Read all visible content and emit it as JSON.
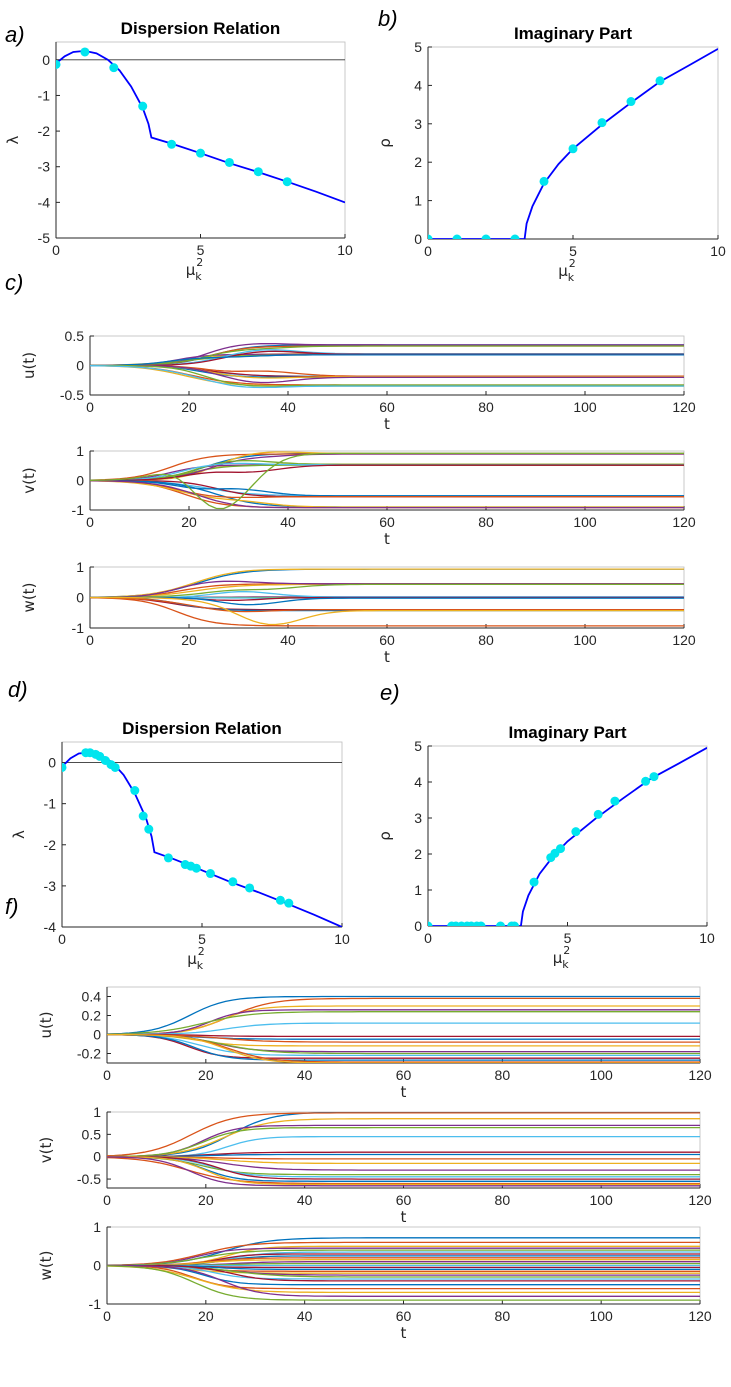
{
  "panel_labels": [
    "a)",
    "b)",
    "c)",
    "d)",
    "e)",
    "f)"
  ],
  "chart_data": [
    {
      "id": "a",
      "type": "line",
      "title": "Dispersion Relation",
      "xlabel": "μ",
      "xlabel_sup": "2",
      "xlabel_sub": "k",
      "ylabel": "λ",
      "xlim": [
        0,
        10
      ],
      "ylim": [
        -5,
        0.5
      ],
      "xticks": [
        0,
        5,
        10
      ],
      "yticks": [
        0,
        -1,
        -2,
        -3,
        -4,
        -5
      ],
      "curve": [
        [
          0,
          -0.1
        ],
        [
          0.3,
          0.1
        ],
        [
          0.6,
          0.22
        ],
        [
          1,
          0.25
        ],
        [
          1.4,
          0.18
        ],
        [
          1.8,
          0.0
        ],
        [
          2.2,
          -0.3
        ],
        [
          2.6,
          -0.75
        ],
        [
          3.0,
          -1.35
        ],
        [
          3.2,
          -1.8
        ],
        [
          3.3,
          -2.18
        ],
        [
          4,
          -2.35
        ],
        [
          5,
          -2.62
        ],
        [
          6,
          -2.9
        ],
        [
          7,
          -3.15
        ],
        [
          8,
          -3.42
        ],
        [
          9,
          -3.7
        ],
        [
          10,
          -4.0
        ]
      ],
      "points": [
        [
          0,
          -0.13
        ],
        [
          1,
          0.22
        ],
        [
          2,
          -0.22
        ],
        [
          3,
          -1.3
        ],
        [
          4,
          -2.37
        ],
        [
          5,
          -2.62
        ],
        [
          6,
          -2.88
        ],
        [
          7,
          -3.14
        ],
        [
          8,
          -3.42
        ]
      ],
      "zero_line": true
    },
    {
      "id": "b",
      "type": "line",
      "title": "Imaginary Part",
      "xlabel": "μ",
      "xlabel_sup": "2",
      "xlabel_sub": "k",
      "ylabel": "ρ",
      "xlim": [
        0,
        10
      ],
      "ylim": [
        0,
        5
      ],
      "xticks": [
        0,
        5,
        10
      ],
      "yticks": [
        0,
        1,
        2,
        3,
        4,
        5
      ],
      "curve": [
        [
          0,
          0
        ],
        [
          3.33,
          0
        ],
        [
          3.4,
          0.4
        ],
        [
          3.6,
          0.85
        ],
        [
          3.8,
          1.15
        ],
        [
          4,
          1.45
        ],
        [
          4.5,
          1.95
        ],
        [
          5,
          2.35
        ],
        [
          6,
          2.98
        ],
        [
          7,
          3.55
        ],
        [
          8,
          4.1
        ],
        [
          9,
          4.52
        ],
        [
          10,
          4.95
        ]
      ],
      "points": [
        [
          0,
          0
        ],
        [
          1,
          0
        ],
        [
          2,
          0
        ],
        [
          3,
          0
        ],
        [
          4,
          1.5
        ],
        [
          5,
          2.35
        ],
        [
          6,
          3.03
        ],
        [
          7,
          3.58
        ],
        [
          8,
          4.12
        ]
      ]
    },
    {
      "id": "c_u",
      "type": "line",
      "ylabel": "u(t)",
      "xlabel": "t",
      "xlim": [
        0,
        120
      ],
      "ylim": [
        -0.5,
        0.5
      ],
      "xticks": [
        0,
        20,
        40,
        60,
        80,
        100,
        120
      ],
      "yticks": [
        -0.5,
        0,
        0.5
      ],
      "final_levels": [
        0.35,
        0.33,
        0.2,
        0.19,
        0.18,
        -0.18,
        -0.19,
        -0.2,
        -0.33,
        -0.35
      ],
      "peak_levels": [
        0.38,
        0.3,
        0.28,
        0.25,
        0.15,
        -0.1,
        -0.22,
        -0.3,
        -0.36,
        -0.4
      ]
    },
    {
      "id": "c_v",
      "type": "line",
      "ylabel": "v(t)",
      "xlabel": "t",
      "xlim": [
        0,
        120
      ],
      "ylim": [
        -1,
        1
      ],
      "xticks": [
        0,
        20,
        40,
        60,
        80,
        100,
        120
      ],
      "yticks": [
        -1,
        0,
        1
      ],
      "final_levels": [
        0.92,
        0.9,
        0.55,
        0.53,
        0.52,
        -0.52,
        -0.55,
        -0.9,
        -0.92
      ],
      "peak_levels": [
        1.0,
        0.85,
        0.7,
        0.6,
        0.3,
        -0.3,
        -0.6,
        -0.75,
        -0.95,
        -1.0
      ]
    },
    {
      "id": "c_w",
      "type": "line",
      "ylabel": "w(t)",
      "xlabel": "t",
      "xlim": [
        0,
        120
      ],
      "ylim": [
        -1,
        1
      ],
      "xticks": [
        0,
        20,
        40,
        60,
        80,
        100,
        120
      ],
      "yticks": [
        -1,
        0,
        1
      ],
      "final_levels": [
        0.93,
        0.45,
        0.43,
        0.02,
        0.0,
        -0.02,
        -0.4,
        -0.43,
        -0.93
      ],
      "peak_levels": [
        0.95,
        0.55,
        0.3,
        0.2,
        -0.1,
        -0.25,
        -0.5,
        -0.95
      ]
    },
    {
      "id": "d",
      "type": "line",
      "title": "Dispersion Relation",
      "xlabel": "μ",
      "xlabel_sup": "2",
      "xlabel_sub": "k",
      "ylabel": "λ",
      "xlim": [
        0,
        10
      ],
      "ylim": [
        -4,
        0.5
      ],
      "xticks": [
        0,
        5,
        10
      ],
      "yticks": [
        0,
        -1,
        -2,
        -3,
        -4
      ],
      "curve": [
        [
          0,
          -0.1
        ],
        [
          0.3,
          0.1
        ],
        [
          0.6,
          0.22
        ],
        [
          1,
          0.25
        ],
        [
          1.4,
          0.18
        ],
        [
          1.8,
          0.0
        ],
        [
          2.2,
          -0.3
        ],
        [
          2.6,
          -0.75
        ],
        [
          3.0,
          -1.35
        ],
        [
          3.2,
          -1.8
        ],
        [
          3.3,
          -2.18
        ],
        [
          4,
          -2.35
        ],
        [
          5,
          -2.62
        ],
        [
          6,
          -2.9
        ],
        [
          7,
          -3.15
        ],
        [
          8,
          -3.42
        ],
        [
          9,
          -3.7
        ],
        [
          10,
          -4.0
        ]
      ],
      "points": [
        [
          0,
          -0.12
        ],
        [
          0.85,
          0.24
        ],
        [
          1,
          0.24
        ],
        [
          1.2,
          0.2
        ],
        [
          1.35,
          0.15
        ],
        [
          1.55,
          0.05
        ],
        [
          1.75,
          -0.05
        ],
        [
          1.9,
          -0.12
        ],
        [
          2.6,
          -0.68
        ],
        [
          2.9,
          -1.3
        ],
        [
          3.1,
          -1.62
        ],
        [
          3.8,
          -2.32
        ],
        [
          4.4,
          -2.48
        ],
        [
          4.6,
          -2.52
        ],
        [
          4.8,
          -2.57
        ],
        [
          5.3,
          -2.7
        ],
        [
          6.1,
          -2.9
        ],
        [
          6.7,
          -3.05
        ],
        [
          7.8,
          -3.35
        ],
        [
          8.1,
          -3.42
        ]
      ],
      "zero_line": true
    },
    {
      "id": "e",
      "type": "line",
      "title": "Imaginary Part",
      "xlabel": "μ",
      "xlabel_sup": "2",
      "xlabel_sub": "k",
      "ylabel": "ρ",
      "xlim": [
        0,
        10
      ],
      "ylim": [
        0,
        5
      ],
      "xticks": [
        0,
        5,
        10
      ],
      "yticks": [
        0,
        1,
        2,
        3,
        4,
        5
      ],
      "curve": [
        [
          0,
          0
        ],
        [
          3.33,
          0
        ],
        [
          3.4,
          0.4
        ],
        [
          3.6,
          0.85
        ],
        [
          3.8,
          1.15
        ],
        [
          4,
          1.45
        ],
        [
          4.5,
          1.95
        ],
        [
          5,
          2.35
        ],
        [
          6,
          2.98
        ],
        [
          7,
          3.55
        ],
        [
          8,
          4.1
        ],
        [
          9,
          4.52
        ],
        [
          10,
          4.95
        ]
      ],
      "points": [
        [
          0,
          0
        ],
        [
          0.85,
          0
        ],
        [
          1,
          0
        ],
        [
          1.2,
          0
        ],
        [
          1.4,
          0
        ],
        [
          1.55,
          0
        ],
        [
          1.75,
          0
        ],
        [
          1.9,
          0
        ],
        [
          2.6,
          0
        ],
        [
          3.0,
          0
        ],
        [
          3.1,
          0
        ],
        [
          3.8,
          1.22
        ],
        [
          4.4,
          1.9
        ],
        [
          4.55,
          2.02
        ],
        [
          4.75,
          2.15
        ],
        [
          5.3,
          2.62
        ],
        [
          6.1,
          3.1
        ],
        [
          6.7,
          3.47
        ],
        [
          7.8,
          4.02
        ],
        [
          8.1,
          4.15
        ]
      ]
    },
    {
      "id": "f_u",
      "type": "line",
      "ylabel": "u(t)",
      "xlabel": "t",
      "xlim": [
        0,
        120
      ],
      "ylim": [
        -0.3,
        0.5
      ],
      "xticks": [
        0,
        20,
        40,
        60,
        80,
        100,
        120
      ],
      "yticks": [
        -0.2,
        0,
        0.2,
        0.4
      ],
      "final_levels": [
        0.4,
        0.38,
        0.3,
        0.26,
        0.24,
        0.12,
        -0.02,
        -0.05,
        -0.08,
        -0.12,
        -0.18,
        -0.2,
        -0.22,
        -0.25,
        -0.27,
        -0.29,
        -0.3
      ]
    },
    {
      "id": "f_v",
      "type": "line",
      "ylabel": "v(t)",
      "xlabel": "t",
      "xlim": [
        0,
        120
      ],
      "ylim": [
        -0.7,
        1
      ],
      "xticks": [
        0,
        20,
        40,
        60,
        80,
        100,
        120
      ],
      "yticks": [
        -0.5,
        0,
        0.5,
        1
      ],
      "final_levels": [
        1.0,
        0.98,
        0.85,
        0.7,
        0.65,
        0.45,
        0.1,
        0.05,
        -0.05,
        -0.15,
        -0.3,
        -0.4,
        -0.45,
        -0.5,
        -0.55,
        -0.6,
        -0.62,
        -0.65
      ]
    },
    {
      "id": "f_w",
      "type": "line",
      "ylabel": "w(t)",
      "xlabel": "t",
      "xlim": [
        0,
        120
      ],
      "ylim": [
        -1,
        1
      ],
      "xticks": [
        0,
        20,
        40,
        60,
        80,
        100,
        120
      ],
      "yticks": [
        -1,
        0,
        1
      ],
      "final_levels": [
        0.72,
        0.6,
        0.5,
        0.45,
        0.4,
        0.35,
        0.3,
        0.25,
        0.2,
        0.15,
        0.1,
        0.05,
        0.0,
        -0.05,
        -0.1,
        -0.15,
        -0.2,
        -0.25,
        -0.3,
        -0.35,
        -0.4,
        -0.5,
        -0.6,
        -0.7,
        -0.8,
        -0.9
      ]
    }
  ],
  "colors": {
    "curve": "#0000ff",
    "marker": "#00e5ee",
    "zero_line": "#333333",
    "axes": "#262626",
    "series": [
      "#0072bd",
      "#d95319",
      "#edb120",
      "#7e2f8e",
      "#77ac30",
      "#4dbeee",
      "#a2142f"
    ]
  }
}
